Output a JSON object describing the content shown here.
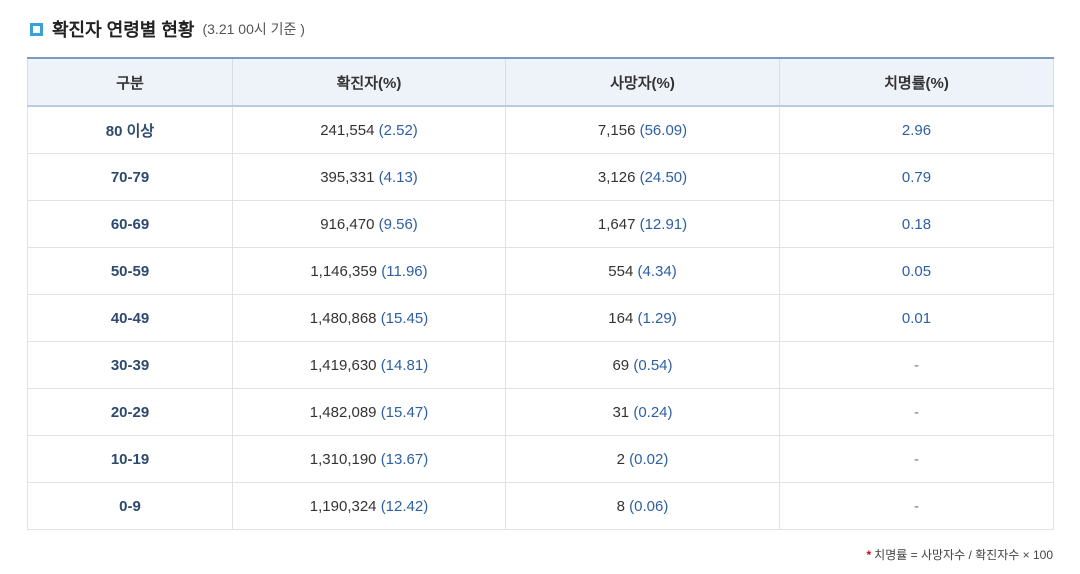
{
  "title": "확진자 연령별 현황",
  "subtitle": "(3.21 00시 기준 )",
  "headers": [
    "구분",
    "확진자(%)",
    "사망자(%)",
    "치명률(%)"
  ],
  "rows": [
    {
      "group": "80 이상",
      "cases": "241,554",
      "cases_pct": "(2.52)",
      "deaths": "7,156",
      "deaths_pct": "(56.09)",
      "rate": "2.96"
    },
    {
      "group": "70-79",
      "cases": "395,331",
      "cases_pct": "(4.13)",
      "deaths": "3,126",
      "deaths_pct": "(24.50)",
      "rate": "0.79"
    },
    {
      "group": "60-69",
      "cases": "916,470",
      "cases_pct": "(9.56)",
      "deaths": "1,647",
      "deaths_pct": "(12.91)",
      "rate": "0.18"
    },
    {
      "group": "50-59",
      "cases": "1,146,359",
      "cases_pct": "(11.96)",
      "deaths": "554",
      "deaths_pct": "(4.34)",
      "rate": "0.05"
    },
    {
      "group": "40-49",
      "cases": "1,480,868",
      "cases_pct": "(15.45)",
      "deaths": "164",
      "deaths_pct": "(1.29)",
      "rate": "0.01"
    },
    {
      "group": "30-39",
      "cases": "1,419,630",
      "cases_pct": "(14.81)",
      "deaths": "69",
      "deaths_pct": "(0.54)",
      "rate": "-"
    },
    {
      "group": "20-29",
      "cases": "1,482,089",
      "cases_pct": "(15.47)",
      "deaths": "31",
      "deaths_pct": "(0.24)",
      "rate": "-"
    },
    {
      "group": "10-19",
      "cases": "1,310,190",
      "cases_pct": "(13.67)",
      "deaths": "2",
      "deaths_pct": "(0.02)",
      "rate": "-"
    },
    {
      "group": "0-9",
      "cases": "1,190,324",
      "cases_pct": "(12.42)",
      "deaths": "8",
      "deaths_pct": "(0.06)",
      "rate": "-"
    }
  ],
  "footnote": {
    "star": "*",
    "text": "치명률 = 사망자수 / 확진자수 × 100"
  },
  "colors": {
    "accent": "#3aa0d8",
    "header_bg": "#eef3f9",
    "value_blue": "#2d5fa3",
    "group_text": "#2d4a6e"
  }
}
